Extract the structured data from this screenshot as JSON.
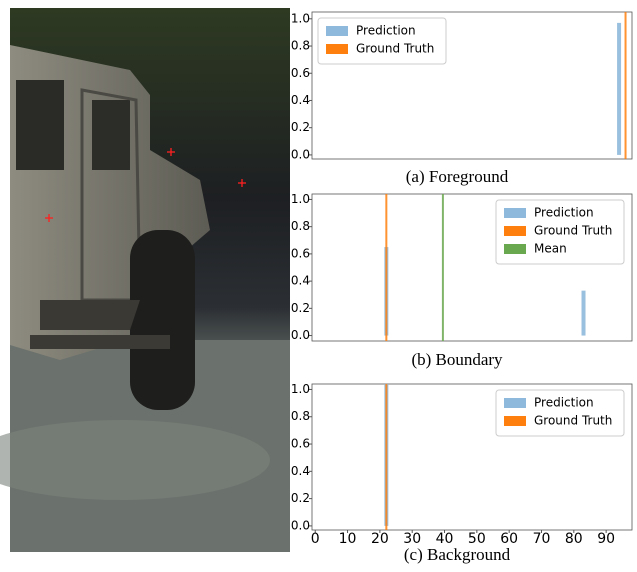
{
  "chart_data": [
    {
      "type": "bar",
      "title": "(a) Foreground",
      "series": [
        {
          "name": "Prediction",
          "color": "#8fb9dc",
          "x": [
            94
          ],
          "values": [
            0.97
          ]
        },
        {
          "name": "Ground Truth",
          "color": "#ff7f0e",
          "x": [
            96
          ]
        }
      ],
      "xlim": [
        -1,
        98
      ],
      "ylim": [
        -0.03,
        1.05
      ],
      "yticks": [
        {
          "value": 0,
          "label": "0.0"
        },
        0.2,
        0.4,
        0.6,
        0.8,
        {
          "value": 1,
          "label": "1.0"
        }
      ],
      "legend": "upper left"
    },
    {
      "type": "bar",
      "title": "(b) Boundary",
      "series": [
        {
          "name": "Prediction",
          "color": "#8fb9dc",
          "x": [
            22,
            83
          ],
          "values": [
            0.65,
            0.33
          ]
        },
        {
          "name": "Ground Truth",
          "color": "#ff7f0e",
          "x": [
            22
          ]
        },
        {
          "name": "Mean",
          "color": "#6aa84f",
          "x": [
            39.5
          ]
        }
      ],
      "xlim": [
        -1,
        98
      ],
      "ylim": [
        -0.04,
        1.04
      ],
      "yticks": [
        {
          "value": 0,
          "label": "0.0"
        },
        0.2,
        0.4,
        0.6,
        0.8,
        {
          "value": 1,
          "label": "1.0"
        }
      ],
      "legend": "upper right"
    },
    {
      "type": "bar",
      "title": "(c) Background",
      "series": [
        {
          "name": "Prediction",
          "color": "#8fb9dc",
          "x": [
            22
          ],
          "values": [
            1.04
          ]
        },
        {
          "name": "Ground Truth",
          "color": "#ff7f0e",
          "x": [
            22
          ]
        }
      ],
      "xlim": [
        -1,
        98
      ],
      "ylim": [
        -0.03,
        1.04
      ],
      "yticks": [
        {
          "value": 0,
          "label": "0.0"
        },
        0.2,
        0.4,
        0.6,
        0.8,
        {
          "value": 1,
          "label": "1.0"
        }
      ],
      "xticks": [
        0,
        10,
        20,
        30,
        40,
        50,
        60,
        70,
        80,
        90
      ],
      "legend": "upper right"
    }
  ]
}
